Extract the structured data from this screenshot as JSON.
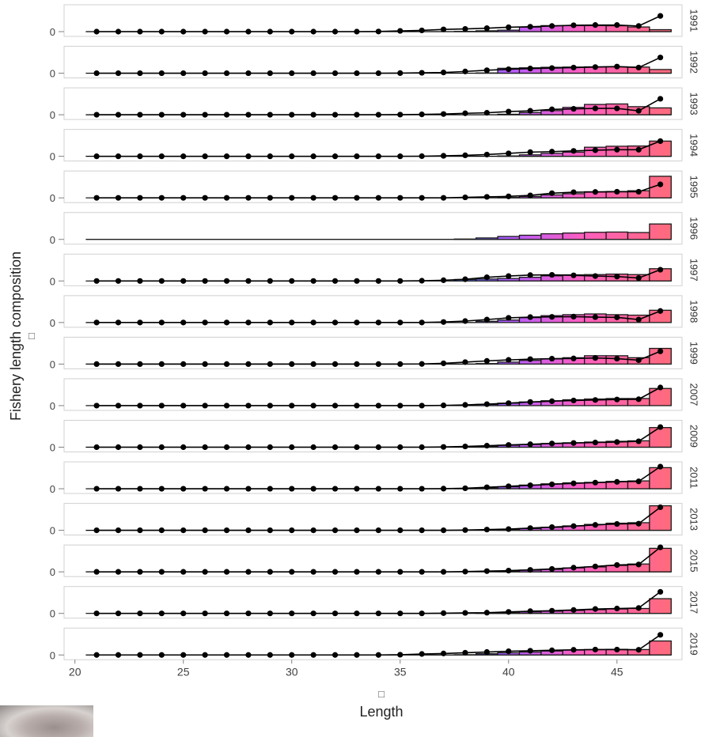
{
  "chart_data": {
    "type": "bar",
    "title": "",
    "xlabel": "Length",
    "ylabel": "Fishery length composition",
    "xlabel_glyph": "□",
    "ylabel_glyph": "□",
    "x_ticks": [
      20,
      25,
      30,
      35,
      40,
      45
    ],
    "xlim": [
      19.5,
      48.0
    ],
    "y_tick_label": "0",
    "bins": [
      21,
      22,
      23,
      24,
      25,
      26,
      27,
      28,
      29,
      30,
      31,
      32,
      33,
      34,
      35,
      36,
      37,
      38,
      39,
      40,
      41,
      42,
      43,
      44,
      45,
      46,
      47
    ],
    "grid": false,
    "legend": "none",
    "panel_strip_position": "right",
    "fill_gradient": [
      "#1f8cff",
      "#b25cff",
      "#ff5fbd",
      "#ff6b7a"
    ],
    "observed_style": "filled bars",
    "expected_style": "black line with points",
    "panels": [
      {
        "year": "1991",
        "observed": [
          0,
          0,
          0,
          0,
          0,
          0,
          0,
          0,
          0,
          0,
          0,
          0,
          0,
          0,
          0,
          0,
          0,
          0.01,
          0.035,
          0.06,
          0.185,
          0.245,
          0.245,
          0.245,
          0.24,
          0.19,
          0.08
        ],
        "expected": [
          0,
          0,
          0,
          0,
          0,
          0,
          0,
          0,
          0,
          0,
          0,
          0,
          0,
          0.005,
          0.03,
          0.05,
          0.09,
          0.11,
          0.14,
          0.18,
          0.2,
          0.23,
          0.26,
          0.27,
          0.27,
          0.23,
          0.64
        ]
      },
      {
        "year": "1992",
        "observed": [
          0,
          0,
          0,
          0,
          0,
          0,
          0,
          0,
          0,
          0,
          0,
          0,
          0,
          0,
          0,
          0,
          0,
          0,
          0.01,
          0.2,
          0.22,
          0.24,
          0.25,
          0.26,
          0.26,
          0.25,
          0.15
        ],
        "expected": [
          0,
          0,
          0,
          0,
          0,
          0,
          0,
          0,
          0,
          0,
          0,
          0,
          0,
          0,
          0.005,
          0.015,
          0.03,
          0.07,
          0.12,
          0.16,
          0.19,
          0.21,
          0.23,
          0.25,
          0.27,
          0.23,
          0.64
        ]
      },
      {
        "year": "1993",
        "observed": [
          0,
          0,
          0,
          0,
          0,
          0,
          0,
          0,
          0,
          0,
          0,
          0,
          0,
          0,
          0,
          0,
          0,
          0,
          0,
          0.02,
          0.09,
          0.17,
          0.3,
          0.42,
          0.44,
          0.33,
          0.28
        ],
        "expected": [
          0,
          0,
          0,
          0,
          0,
          0,
          0,
          0,
          0,
          0,
          0,
          0,
          0,
          0,
          0.005,
          0.015,
          0.03,
          0.06,
          0.08,
          0.13,
          0.16,
          0.22,
          0.24,
          0.26,
          0.26,
          0.16,
          0.65
        ]
      },
      {
        "year": "1994",
        "observed": [
          0,
          0,
          0,
          0,
          0,
          0,
          0,
          0,
          0,
          0,
          0,
          0,
          0,
          0,
          0,
          0,
          0,
          0,
          0,
          0.015,
          0.06,
          0.12,
          0.17,
          0.37,
          0.41,
          0.42,
          0.62
        ],
        "expected": [
          0,
          0,
          0,
          0,
          0,
          0,
          0,
          0,
          0,
          0,
          0,
          0,
          0,
          0,
          0,
          0.005,
          0.02,
          0.04,
          0.07,
          0.12,
          0.17,
          0.19,
          0.22,
          0.25,
          0.27,
          0.27,
          0.62
        ]
      },
      {
        "year": "1995",
        "observed": [
          0,
          0,
          0,
          0,
          0,
          0,
          0,
          0,
          0,
          0,
          0,
          0,
          0,
          0,
          0,
          0,
          0,
          0,
          0,
          0.015,
          0.06,
          0.12,
          0.17,
          0.25,
          0.26,
          0.29,
          0.88
        ],
        "expected": [
          0,
          0,
          0,
          0,
          0,
          0,
          0,
          0,
          0,
          0,
          0,
          0,
          0,
          0,
          0,
          0,
          0,
          0.02,
          0.04,
          0.06,
          0.1,
          0.19,
          0.23,
          0.24,
          0.25,
          0.25,
          0.55
        ]
      },
      {
        "year": "1996",
        "observed": [
          0,
          0,
          0,
          0,
          0,
          0,
          0,
          0,
          0,
          0,
          0,
          0,
          0,
          0,
          0,
          0,
          0,
          0.015,
          0.06,
          0.12,
          0.17,
          0.23,
          0.26,
          0.29,
          0.3,
          0.28,
          0.63
        ]
      },
      {
        "year": "1997",
        "observed": [
          0,
          0,
          0,
          0,
          0,
          0,
          0,
          0,
          0,
          0,
          0,
          0,
          0,
          0,
          0,
          0,
          0,
          0.06,
          0.08,
          0.1,
          0.15,
          0.21,
          0.25,
          0.26,
          0.28,
          0.26,
          0.5
        ],
        "expected": [
          0,
          0,
          0,
          0,
          0,
          0,
          0,
          0,
          0,
          0,
          0,
          0,
          0,
          0,
          0,
          0.01,
          0.03,
          0.07,
          0.15,
          0.2,
          0.24,
          0.25,
          0.23,
          0.2,
          0.18,
          0.12,
          0.46
        ]
      },
      {
        "year": "1998",
        "observed": [
          0,
          0,
          0,
          0,
          0,
          0,
          0,
          0,
          0,
          0,
          0,
          0,
          0,
          0,
          0,
          0,
          0,
          0,
          0.05,
          0.1,
          0.2,
          0.28,
          0.32,
          0.35,
          0.32,
          0.3,
          0.5
        ],
        "expected": [
          0,
          0,
          0,
          0,
          0,
          0,
          0,
          0,
          0,
          0,
          0,
          0,
          0,
          0,
          0,
          0,
          0.02,
          0.06,
          0.12,
          0.19,
          0.22,
          0.23,
          0.24,
          0.22,
          0.21,
          0.12,
          0.47
        ]
      },
      {
        "year": "1999",
        "observed": [
          0,
          0,
          0,
          0,
          0,
          0,
          0,
          0,
          0,
          0,
          0,
          0,
          0,
          0,
          0,
          0,
          0,
          0,
          0.02,
          0.08,
          0.15,
          0.21,
          0.26,
          0.34,
          0.34,
          0.26,
          0.64
        ],
        "expected": [
          0,
          0,
          0,
          0,
          0,
          0,
          0,
          0,
          0,
          0,
          0,
          0,
          0,
          0,
          0,
          0.005,
          0.03,
          0.08,
          0.13,
          0.17,
          0.2,
          0.22,
          0.23,
          0.25,
          0.22,
          0.16,
          0.52
        ]
      },
      {
        "year": "2007",
        "observed": [
          0,
          0,
          0,
          0,
          0,
          0,
          0,
          0,
          0,
          0,
          0,
          0,
          0,
          0,
          0,
          0,
          0,
          0,
          0.05,
          0.1,
          0.15,
          0.2,
          0.24,
          0.27,
          0.29,
          0.29,
          0.7
        ],
        "expected": [
          0,
          0,
          0,
          0,
          0,
          0,
          0,
          0,
          0,
          0,
          0,
          0,
          0,
          0,
          0,
          0,
          0.01,
          0.03,
          0.06,
          0.1,
          0.15,
          0.18,
          0.21,
          0.23,
          0.25,
          0.26,
          0.74
        ]
      },
      {
        "year": "2009",
        "observed": [
          0,
          0,
          0,
          0,
          0,
          0,
          0,
          0,
          0,
          0,
          0,
          0,
          0,
          0,
          0,
          0,
          0,
          0,
          0.04,
          0.08,
          0.11,
          0.15,
          0.18,
          0.21,
          0.24,
          0.26,
          0.8
        ],
        "expected": [
          0,
          0,
          0,
          0,
          0,
          0,
          0,
          0,
          0,
          0,
          0,
          0,
          0,
          0,
          0,
          0,
          0.01,
          0.03,
          0.06,
          0.09,
          0.12,
          0.15,
          0.17,
          0.19,
          0.21,
          0.24,
          0.82
        ]
      },
      {
        "year": "2011",
        "observed": [
          0,
          0,
          0,
          0,
          0,
          0,
          0,
          0,
          0,
          0,
          0,
          0,
          0,
          0,
          0,
          0,
          0,
          0.01,
          0.03,
          0.08,
          0.15,
          0.2,
          0.24,
          0.26,
          0.3,
          0.32,
          0.86
        ],
        "expected": [
          0,
          0,
          0,
          0,
          0,
          0,
          0,
          0,
          0,
          0,
          0,
          0,
          0,
          0,
          0,
          0,
          0.005,
          0.02,
          0.06,
          0.1,
          0.14,
          0.18,
          0.22,
          0.25,
          0.28,
          0.3,
          0.9
        ]
      },
      {
        "year": "2013",
        "observed": [
          0,
          0,
          0,
          0,
          0,
          0,
          0,
          0,
          0,
          0,
          0,
          0,
          0,
          0,
          0,
          0,
          0,
          0,
          0,
          0.03,
          0.07,
          0.12,
          0.18,
          0.24,
          0.29,
          0.31,
          1.0
        ],
        "expected": [
          0,
          0,
          0,
          0,
          0,
          0,
          0,
          0,
          0,
          0,
          0,
          0,
          0,
          0,
          0,
          0,
          0,
          0.01,
          0.03,
          0.05,
          0.09,
          0.13,
          0.17,
          0.22,
          0.26,
          0.27,
          0.94
        ]
      },
      {
        "year": "2015",
        "observed": [
          0,
          0,
          0,
          0,
          0,
          0,
          0,
          0,
          0,
          0,
          0,
          0,
          0,
          0,
          0,
          0,
          0,
          0,
          0,
          0.03,
          0.07,
          0.1,
          0.16,
          0.2,
          0.26,
          0.32,
          0.96
        ],
        "expected": [
          0,
          0,
          0,
          0,
          0,
          0,
          0,
          0,
          0,
          0,
          0,
          0,
          0,
          0,
          0,
          0,
          0,
          0.01,
          0.03,
          0.05,
          0.08,
          0.12,
          0.17,
          0.22,
          0.28,
          0.3,
          1.0
        ]
      },
      {
        "year": "2017",
        "observed": [
          0,
          0,
          0,
          0,
          0,
          0,
          0,
          0,
          0,
          0,
          0,
          0,
          0,
          0,
          0,
          0,
          0,
          0,
          0.01,
          0.03,
          0.06,
          0.09,
          0.12,
          0.15,
          0.18,
          0.2,
          0.6
        ],
        "expected": [
          0,
          0,
          0,
          0,
          0,
          0,
          0,
          0,
          0,
          0,
          0,
          0,
          0,
          0,
          0,
          0,
          0.01,
          0.02,
          0.03,
          0.06,
          0.09,
          0.11,
          0.14,
          0.18,
          0.2,
          0.22,
          0.88
        ]
      },
      {
        "year": "2019",
        "observed": [
          0,
          0,
          0,
          0,
          0,
          0,
          0,
          0,
          0,
          0,
          0,
          0,
          0,
          0,
          0,
          0,
          0,
          0.01,
          0.05,
          0.09,
          0.12,
          0.16,
          0.2,
          0.22,
          0.23,
          0.22,
          0.57
        ],
        "expected": [
          0,
          0,
          0,
          0,
          0,
          0,
          0,
          0,
          0,
          0,
          0,
          0,
          0,
          0,
          0.01,
          0.04,
          0.06,
          0.09,
          0.12,
          0.15,
          0.17,
          0.19,
          0.21,
          0.22,
          0.22,
          0.21,
          0.82
        ]
      }
    ]
  }
}
